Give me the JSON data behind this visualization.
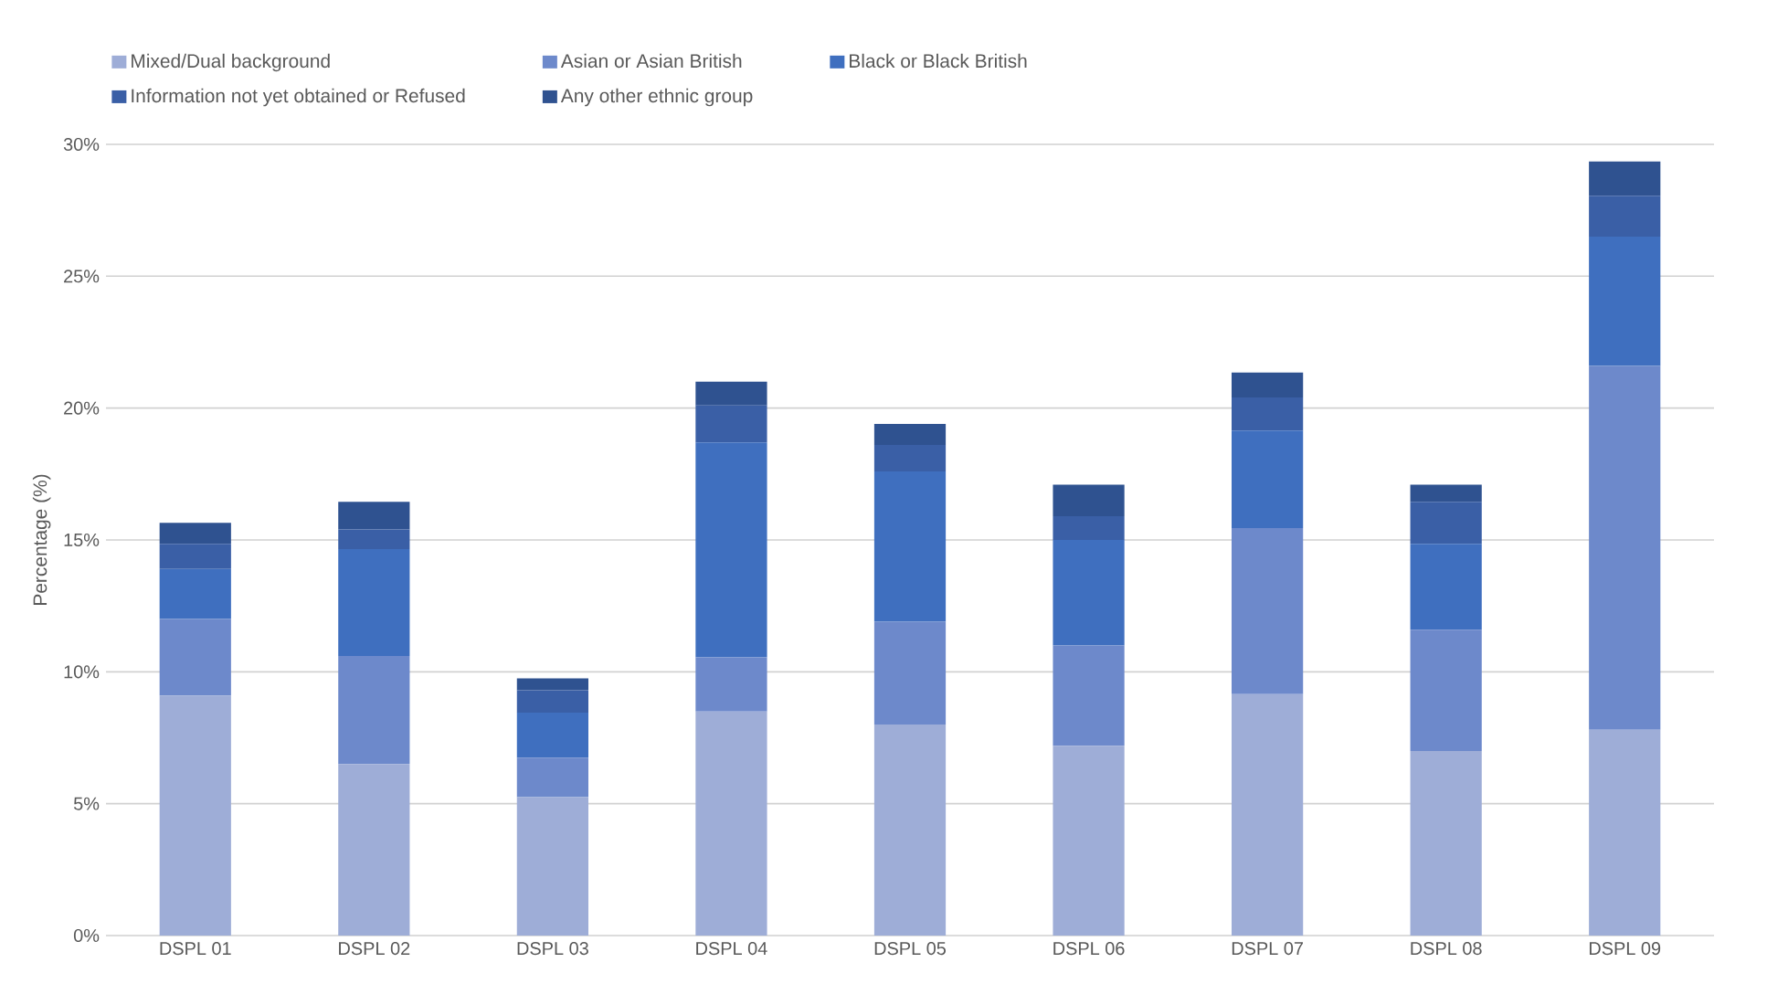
{
  "chart_data": {
    "type": "bar",
    "stacked": true,
    "ylabel": "Percentage (%)",
    "categories": [
      "DSPL 01",
      "DSPL 02",
      "DSPL 03",
      "DSPL 04",
      "DSPL 05",
      "DSPL 06",
      "DSPL 07",
      "DSPL 08",
      "DSPL 09"
    ],
    "series": [
      {
        "name": "Mixed/Dual background",
        "color": "#9eadd7",
        "values": [
          9.1,
          6.5,
          5.25,
          8.5,
          8.0,
          7.2,
          9.15,
          7.0,
          7.8
        ]
      },
      {
        "name": "Asian or Asian British",
        "color": "#6d89cb",
        "values": [
          2.9,
          4.1,
          1.5,
          2.05,
          3.9,
          3.8,
          6.3,
          4.6,
          13.8
        ]
      },
      {
        "name": "Black or Black British",
        "color": "#3f6fbf",
        "values": [
          1.9,
          4.05,
          1.7,
          8.15,
          5.7,
          4.0,
          3.7,
          3.25,
          4.9
        ]
      },
      {
        "name": "Information not yet obtained or Refused",
        "color": "#3a5fa6",
        "values": [
          0.95,
          0.75,
          0.85,
          1.4,
          1.0,
          0.9,
          1.25,
          1.6,
          1.55
        ]
      },
      {
        "name": "Any other ethnic group",
        "color": "#2f5290",
        "values": [
          0.8,
          1.05,
          0.45,
          0.9,
          0.8,
          1.2,
          0.95,
          0.65,
          1.3
        ]
      }
    ],
    "ylim": [
      0,
      30
    ],
    "yticks": [
      {
        "value": 0,
        "label": "0%"
      },
      {
        "value": 5,
        "label": "5%"
      },
      {
        "value": 10,
        "label": "10%"
      },
      {
        "value": 15,
        "label": "15%"
      },
      {
        "value": 20,
        "label": "20%"
      },
      {
        "value": 25,
        "label": "25%"
      },
      {
        "value": 30,
        "label": "30%"
      }
    ],
    "grid": "y",
    "legend": "top"
  }
}
